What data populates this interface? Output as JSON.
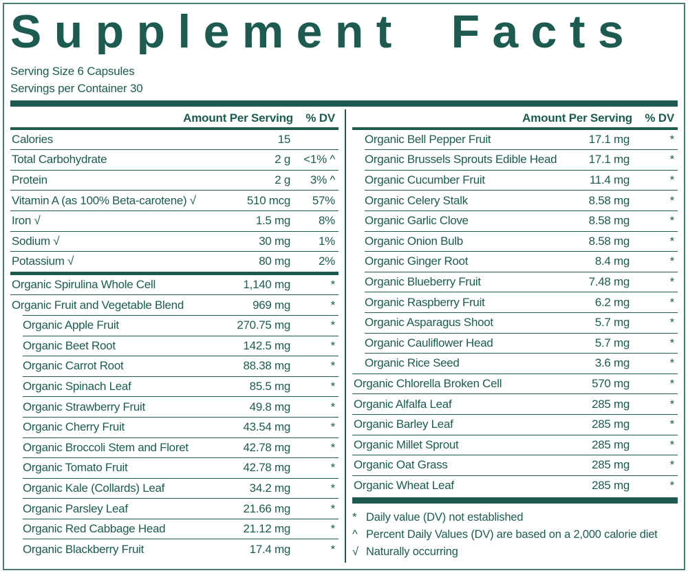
{
  "title": "Supplement Facts",
  "serving": {
    "size": "Serving Size 6 Capsules",
    "per_container": "Servings per Container 30"
  },
  "table": {
    "amount_header": "Amount Per Serving",
    "dv_header": "% DV",
    "left_rows": [
      {
        "name": "Calories",
        "amount": "15",
        "dv": "",
        "indent": false,
        "sep": "none"
      },
      {
        "name": "Total Carbohydrate",
        "amount": "2 g",
        "dv": "<1% ^",
        "indent": false,
        "sep": "thin"
      },
      {
        "name": "Protein",
        "amount": "2 g",
        "dv": "3% ^",
        "indent": false,
        "sep": "thin"
      },
      {
        "name": "Vitamin A (as 100% Beta-carotene) √",
        "amount": "510 mcg",
        "dv": "57%",
        "indent": false,
        "sep": "thin"
      },
      {
        "name": "Iron √",
        "amount": "1.5 mg",
        "dv": "8%",
        "indent": false,
        "sep": "thin"
      },
      {
        "name": "Sodium √",
        "amount": "30 mg",
        "dv": "1%",
        "indent": false,
        "sep": "thin"
      },
      {
        "name": "Potassium √",
        "amount": "80 mg",
        "dv": "2%",
        "indent": false,
        "sep": "thin"
      },
      {
        "name": "Organic Spirulina Whole Cell",
        "amount": "1,140 mg",
        "dv": "*",
        "indent": false,
        "sep": "thick"
      },
      {
        "name": "Organic Fruit and Vegetable Blend",
        "amount": "969 mg",
        "dv": "*",
        "indent": false,
        "sep": "thin"
      },
      {
        "name": "Organic Apple Fruit",
        "amount": "270.75 mg",
        "dv": "*",
        "indent": true,
        "sep": "thin"
      },
      {
        "name": "Organic Beet Root",
        "amount": "142.5 mg",
        "dv": "*",
        "indent": true,
        "sep": "thin"
      },
      {
        "name": "Organic Carrot Root",
        "amount": "88.38 mg",
        "dv": "*",
        "indent": true,
        "sep": "thin"
      },
      {
        "name": "Organic Spinach Leaf",
        "amount": "85.5 mg",
        "dv": "*",
        "indent": true,
        "sep": "thin"
      },
      {
        "name": "Organic Strawberry Fruit",
        "amount": "49.8 mg",
        "dv": "*",
        "indent": true,
        "sep": "thin"
      },
      {
        "name": "Organic Cherry Fruit",
        "amount": "43.54 mg",
        "dv": "*",
        "indent": true,
        "sep": "thin"
      },
      {
        "name": "Organic Broccoli Stem and Floret",
        "amount": "42.78 mg",
        "dv": "*",
        "indent": true,
        "sep": "thin"
      },
      {
        "name": "Organic Tomato Fruit",
        "amount": "42.78 mg",
        "dv": "*",
        "indent": true,
        "sep": "thin"
      },
      {
        "name": "Organic Kale (Collards) Leaf",
        "amount": "34.2 mg",
        "dv": "*",
        "indent": true,
        "sep": "thin"
      },
      {
        "name": "Organic Parsley Leaf",
        "amount": "21.66 mg",
        "dv": "*",
        "indent": true,
        "sep": "thin"
      },
      {
        "name": "Organic Red Cabbage Head",
        "amount": "21.12 mg",
        "dv": "*",
        "indent": true,
        "sep": "thin"
      },
      {
        "name": "Organic Blackberry Fruit",
        "amount": "17.4 mg",
        "dv": "*",
        "indent": true,
        "sep": "thin"
      }
    ],
    "right_rows": [
      {
        "name": "Organic Bell Pepper Fruit",
        "amount": "17.1 mg",
        "dv": "*",
        "indent": true,
        "sep": "none"
      },
      {
        "name": "Organic Brussels Sprouts Edible Head",
        "amount": "17.1 mg",
        "dv": "*",
        "indent": true,
        "sep": "thin"
      },
      {
        "name": "Organic Cucumber Fruit",
        "amount": "11.4 mg",
        "dv": "*",
        "indent": true,
        "sep": "thin"
      },
      {
        "name": "Organic Celery Stalk",
        "amount": "8.58 mg",
        "dv": "*",
        "indent": true,
        "sep": "thin"
      },
      {
        "name": "Organic Garlic Clove",
        "amount": "8.58 mg",
        "dv": "*",
        "indent": true,
        "sep": "thin"
      },
      {
        "name": "Organic Onion Bulb",
        "amount": "8.58 mg",
        "dv": "*",
        "indent": true,
        "sep": "thin"
      },
      {
        "name": "Organic Ginger Root",
        "amount": "8.4 mg",
        "dv": "*",
        "indent": true,
        "sep": "thin"
      },
      {
        "name": "Organic Blueberry Fruit",
        "amount": "7.48 mg",
        "dv": "*",
        "indent": true,
        "sep": "thin"
      },
      {
        "name": "Organic Raspberry Fruit",
        "amount": "6.2 mg",
        "dv": "*",
        "indent": true,
        "sep": "thin"
      },
      {
        "name": "Organic Asparagus Shoot",
        "amount": "5.7 mg",
        "dv": "*",
        "indent": true,
        "sep": "thin"
      },
      {
        "name": "Organic Cauliflower Head",
        "amount": "5.7 mg",
        "dv": "*",
        "indent": true,
        "sep": "thin"
      },
      {
        "name": "Organic Rice Seed",
        "amount": "3.6 mg",
        "dv": "*",
        "indent": true,
        "sep": "thin"
      },
      {
        "name": "Organic Chlorella Broken Cell",
        "amount": "570 mg",
        "dv": "*",
        "indent": false,
        "sep": "thin"
      },
      {
        "name": "Organic Alfalfa Leaf",
        "amount": "285 mg",
        "dv": "*",
        "indent": false,
        "sep": "thin"
      },
      {
        "name": "Organic Barley Leaf",
        "amount": "285 mg",
        "dv": "*",
        "indent": false,
        "sep": "thin"
      },
      {
        "name": "Organic Millet Sprout",
        "amount": "285 mg",
        "dv": "*",
        "indent": false,
        "sep": "thin"
      },
      {
        "name": "Organic Oat Grass",
        "amount": "285 mg",
        "dv": "*",
        "indent": false,
        "sep": "thin"
      },
      {
        "name": "Organic Wheat Leaf",
        "amount": "285 mg",
        "dv": "*",
        "indent": false,
        "sep": "thin"
      }
    ]
  },
  "footnotes": [
    {
      "symbol": "*",
      "text": "Daily value (DV) not established"
    },
    {
      "symbol": "^",
      "text": "Percent Daily Values (DV) are based on a 2,000 calorie diet"
    },
    {
      "symbol": "√",
      "text": "Naturally occurring"
    }
  ],
  "colors": {
    "accent": "#1d5a50",
    "border": "#4a7d72"
  }
}
